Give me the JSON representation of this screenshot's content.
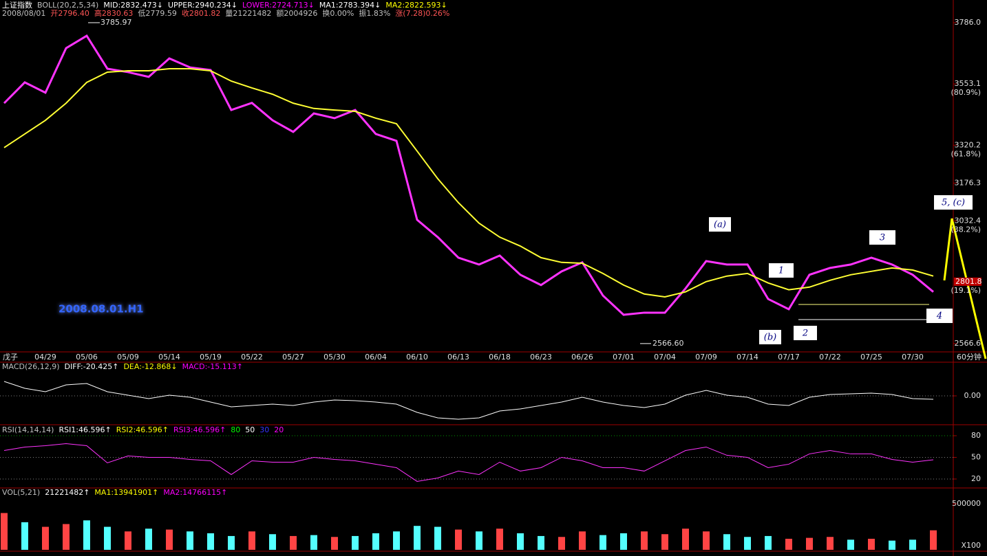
{
  "chart_data": [
    {
      "type": "line",
      "header": [
        {
          "text": "上证指数",
          "color": "#ffffff"
        },
        {
          "text": "BOLL(20,2,5,34)",
          "color": "#c0c0c0"
        },
        {
          "text": "MID:2832.473↓",
          "color": "#ffffff"
        },
        {
          "text": "UPPER:2940.234↓",
          "color": "#ffffff"
        },
        {
          "text": "LOWER:2724.713↓",
          "color": "#ff00ff"
        },
        {
          "text": "MA1:2783.394↓",
          "color": "#ffffff"
        },
        {
          "text": "MA2:2822.593↓",
          "color": "#ffff00"
        }
      ],
      "header2": [
        {
          "text": "2008/08/01",
          "color": "#c0c0c0"
        },
        {
          "text": "开2796.40",
          "color": "#ff5555"
        },
        {
          "text": "高2830.63",
          "color": "#ff5555"
        },
        {
          "text": "低2779.59",
          "color": "#c0c0c0"
        },
        {
          "text": "收2801.82",
          "color": "#ff5555"
        },
        {
          "text": "量21221482",
          "color": "#c0c0c0"
        },
        {
          "text": "额2004926",
          "color": "#c0c0c0"
        },
        {
          "text": "换0.00%",
          "color": "#c0c0c0"
        },
        {
          "text": "振1.83%",
          "color": "#c0c0c0"
        },
        {
          "text": "涨(7.28)0.26%",
          "color": "#ff5555"
        }
      ],
      "categories": [
        null,
        null,
        "04/29",
        null,
        "05/06",
        null,
        "05/09",
        null,
        "05/14",
        null,
        "05/19",
        null,
        "05/22",
        null,
        "05/27",
        null,
        "05/30",
        null,
        "06/04",
        null,
        "06/10",
        null,
        "06/13",
        null,
        "06/18",
        null,
        "06/23",
        null,
        "06/26",
        null,
        "07/01",
        null,
        "07/04",
        null,
        "07/09",
        null,
        "07/14",
        null,
        "07/17",
        null,
        "07/22",
        null,
        "07/25",
        null,
        "07/30",
        null
      ],
      "x_start": "戊子",
      "x_end": "60分钟",
      "series": [
        {
          "color": "#ff33ff",
          "values": [
            3480,
            3559,
            3520,
            3689,
            3736,
            3611,
            3598,
            3580,
            3650,
            3616,
            3606,
            3454,
            3481,
            3415,
            3371,
            3441,
            3423,
            3454,
            3363,
            3337,
            3037,
            2971,
            2893,
            2867,
            2901,
            2828,
            2789,
            2841,
            2875,
            2749,
            2676,
            2684,
            2684,
            2776,
            2880,
            2867,
            2867,
            2736,
            2697,
            2828,
            2854,
            2867,
            2893,
            2867,
            2828,
            2763
          ]
        },
        {
          "color": "#ffff33",
          "values": [
            3311,
            3363,
            3415,
            3480,
            3559,
            3598,
            3603,
            3603,
            3611,
            3611,
            3603,
            3564,
            3538,
            3514,
            3480,
            3460,
            3454,
            3449,
            3423,
            3402,
            3298,
            3193,
            3102,
            3024,
            2971,
            2937,
            2893,
            2875,
            2872,
            2833,
            2789,
            2755,
            2744,
            2763,
            2802,
            2823,
            2833,
            2797,
            2771,
            2781,
            2807,
            2828,
            2841,
            2854,
            2846,
            2823
          ]
        }
      ],
      "ylim": [
        2535,
        3859
      ],
      "yticks": [
        {
          "value": 3786,
          "label": "3786.0"
        },
        3553.1,
        3320.2,
        3176.3,
        3032.4,
        {
          "value": 2566.6,
          "label": "2566.6"
        }
      ],
      "fib_labels": [
        "(80.9%)",
        "(61.8%)",
        "(38.2%)",
        "(19.1%)"
      ],
      "last_price": 2801.8,
      "high_label": 3785.97,
      "low_label": {
        "value": 2566.6,
        "label": "2566.60"
      },
      "annotations": [
        "(a)",
        "(b)",
        "1",
        "2",
        "3",
        "4",
        "5, (c)",
        "2008.08.01.H1"
      ]
    },
    {
      "type": "line",
      "header": [
        {
          "text": "MACD(26,12,9)",
          "color": "#c0c0c0"
        },
        {
          "text": "DIFF:-20.425↑",
          "color": "#ffffff"
        },
        {
          "text": "DEA:-12.868↓",
          "color": "#ffff00"
        },
        {
          "text": "MACD:-15.113↑",
          "color": "#ff00ff"
        }
      ],
      "series": [
        {
          "color": "#ffffff",
          "values": [
            84,
            44,
            24,
            64,
            72,
            24,
            4,
            -16,
            4,
            -8,
            -36,
            -64,
            -56,
            -48,
            -56,
            -36,
            -24,
            -28,
            -36,
            -48,
            -96,
            -128,
            -136,
            -128,
            -88,
            -76,
            -56,
            -36,
            -8,
            -36,
            -56,
            -68,
            -48,
            4,
            32,
            4,
            -8,
            -48,
            -56,
            -8,
            8,
            12,
            16,
            8,
            -16,
            -20
          ]
        }
      ],
      "ylim": [
        -164,
        196
      ],
      "yticks": [
        {
          "value": 0,
          "label": "0.00"
        }
      ],
      "grid": true
    },
    {
      "type": "line",
      "header": [
        {
          "text": "RSI(14,14,14)",
          "color": "#c0c0c0"
        },
        {
          "text": "RSI1:46.596↑",
          "color": "#ffffff"
        },
        {
          "text": "RSI2:46.596↑",
          "color": "#ffff00"
        },
        {
          "text": "RSI3:46.596↑",
          "color": "#ff00ff"
        },
        {
          "text": "80",
          "color": "#00ff00"
        },
        {
          "text": "50",
          "color": "#ffffff"
        },
        {
          "text": "30",
          "color": "#3333ff"
        },
        {
          "text": "20",
          "color": "#ff00ff"
        }
      ],
      "series": [
        {
          "color": "#ff33ff",
          "values": [
            59.5,
            64.3,
            66.2,
            69,
            66.2,
            42.4,
            52,
            50,
            50,
            47.1,
            45.2,
            26.2,
            45.2,
            43.3,
            43.3,
            50,
            47.1,
            45.2,
            40.5,
            35.7,
            16.7,
            21.4,
            31,
            26.2,
            43.3,
            31,
            35.7,
            50,
            45.2,
            35.7,
            35.7,
            31,
            45.2,
            59.5,
            64.3,
            52.9,
            50,
            35.7,
            40.5,
            54.8,
            59.5,
            54.8,
            54.8,
            47.1,
            43.3,
            46.6
          ]
        }
      ],
      "ylim": [
        9.5,
        91.4
      ],
      "yticks": [
        20,
        50,
        80
      ],
      "grid": true
    },
    {
      "type": "bar",
      "header": [
        {
          "text": "VOL(5,21)",
          "color": "#c0c0c0"
        },
        {
          "text": "21221482↑",
          "color": "#ffffff"
        },
        {
          "text": "MA1:13941901↑",
          "color": "#ffff00"
        },
        {
          "text": "MA2:14766115↑",
          "color": "#ff00ff"
        }
      ],
      "values": [
        400000,
        300000,
        250000,
        280000,
        320000,
        250000,
        200000,
        230000,
        220000,
        200000,
        180000,
        150000,
        200000,
        170000,
        150000,
        160000,
        140000,
        150000,
        180000,
        200000,
        260000,
        250000,
        220000,
        200000,
        230000,
        180000,
        150000,
        140000,
        200000,
        160000,
        180000,
        200000,
        170000,
        230000,
        200000,
        170000,
        140000,
        150000,
        120000,
        130000,
        140000,
        110000,
        120000,
        100000,
        110000,
        212000
      ],
      "colors": [
        "#ff4444",
        "#54ffff",
        "#ff4444",
        "#ff4444",
        "#54ffff",
        "#54ffff",
        "#ff4444",
        "#54ffff",
        "#ff4444",
        "#54ffff",
        "#54ffff",
        "#54ffff",
        "#ff4444",
        "#54ffff",
        "#ff4444",
        "#54ffff",
        "#ff4444",
        "#54ffff",
        "#54ffff",
        "#54ffff",
        "#54ffff",
        "#54ffff",
        "#ff4444",
        "#54ffff",
        "#ff4444",
        "#54ffff",
        "#54ffff",
        "#ff4444",
        "#ff4444",
        "#54ffff",
        "#54ffff",
        "#ff4444",
        "#ff4444",
        "#ff4444",
        "#ff4444",
        "#54ffff",
        "#54ffff",
        "#54ffff",
        "#ff4444",
        "#ff4444",
        "#ff4444",
        "#54ffff",
        "#ff4444",
        "#54ffff",
        "#54ffff",
        "#ff4444"
      ],
      "ylim": [
        0,
        650000
      ],
      "yticks": [
        500000
      ],
      "unit_label": "X100"
    }
  ]
}
